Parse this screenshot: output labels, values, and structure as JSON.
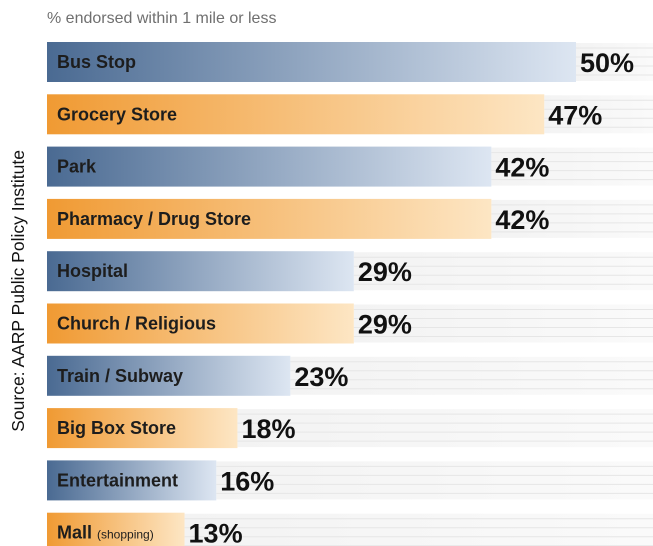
{
  "source_text": "Source: AARP Public Policy Institute",
  "chart_data": {
    "type": "bar",
    "orientation": "horizontal",
    "subtitle": "% endorsed within 1 mile or less",
    "categories": [
      "Bus Stop",
      "Grocery Store",
      "Park",
      "Pharmacy / Drug Store",
      "Hospital",
      "Church / Religious",
      "Train / Subway",
      "Big Box Store",
      "Entertainment",
      "Mall"
    ],
    "category_notes": [
      "",
      "",
      "",
      "",
      "",
      "",
      "",
      "",
      "",
      "(shopping)"
    ],
    "values": [
      50,
      47,
      42,
      42,
      29,
      29,
      23,
      18,
      16,
      13
    ],
    "value_labels": [
      "50%",
      "47%",
      "42%",
      "42%",
      "29%",
      "29%",
      "23%",
      "18%",
      "16%",
      "13%"
    ],
    "value_unit": "%",
    "xlim": [
      0,
      50
    ],
    "grid": false,
    "legend": "none",
    "colors": {
      "blue_dark": "#4a6a92",
      "blue_light": "#dde6f2",
      "orange_dark": "#f09a33",
      "orange_light": "#fde6c4",
      "track_stripe": "#eeeeee"
    }
  }
}
